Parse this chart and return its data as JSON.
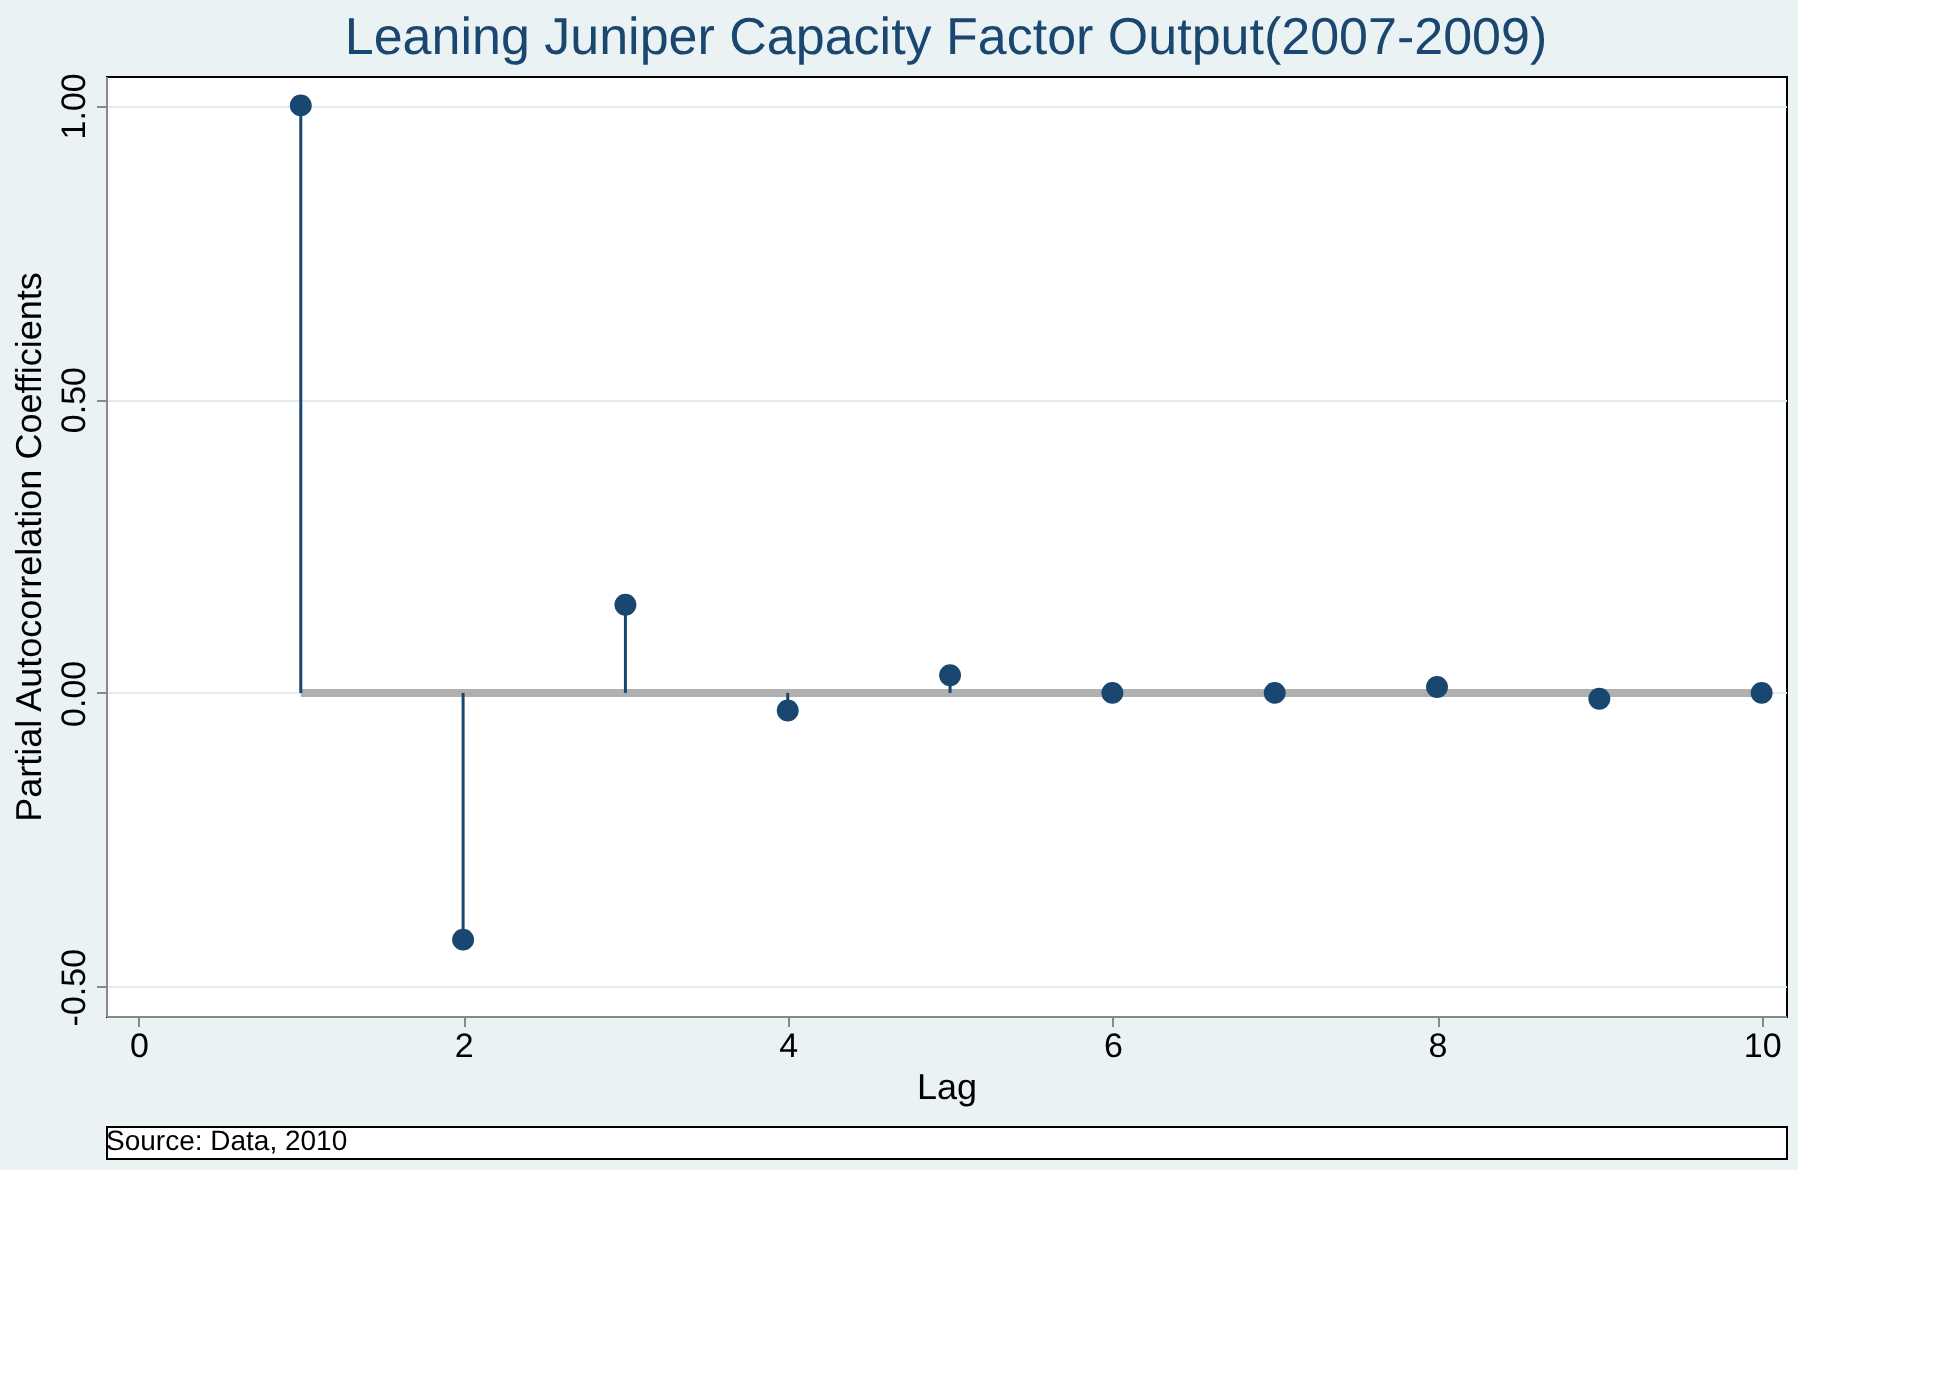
{
  "chart_data": {
    "type": "lollipop",
    "title": "Leaning Juniper Capacity Factor Output(2007-2009)",
    "xlabel": "Lag",
    "ylabel": "Partial Autocorrelation Coefficients",
    "x": [
      1,
      2,
      3,
      4,
      5,
      6,
      7,
      8,
      9,
      10
    ],
    "series": [
      {
        "color": "#1a476f",
        "values": [
          1.0,
          -0.42,
          0.15,
          -0.03,
          0.03,
          0.0,
          0.0,
          0.01,
          -0.01,
          0.0
        ]
      }
    ],
    "xlim": [
      -0.2,
      10.15
    ],
    "ylim": [
      -0.55,
      1.05
    ],
    "xticks": [
      0,
      2,
      4,
      6,
      8,
      10
    ],
    "yticks": [
      {
        "value": -0.5,
        "label": "-0.50"
      },
      {
        "value": 0,
        "label": "0.00"
      },
      {
        "value": 0.5,
        "label": "0.50"
      },
      {
        "value": 1,
        "label": "1.00"
      }
    ],
    "ref_lines": [
      {
        "axis": "y",
        "value": 0,
        "color": "#b0b0b0"
      }
    ],
    "grid": "y",
    "marker": "circle",
    "legend": false,
    "annotations": [
      "Source:  Data, 2010"
    ]
  }
}
